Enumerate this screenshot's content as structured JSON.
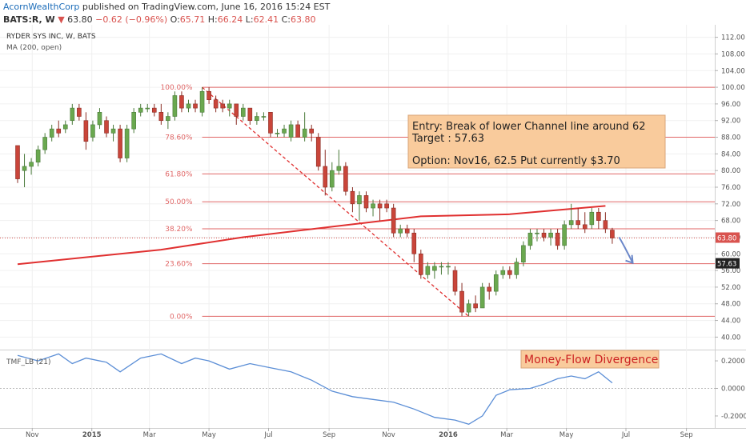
{
  "header": {
    "author": "AcornWealthCorp",
    "published": "published on TradingView.com, June 16, 2016 15:24 EST",
    "symbol": "BATS:R, W",
    "last": "63.80",
    "change": "−0.62 (−0.96%)",
    "o_label": "O:",
    "o_val": "65.71",
    "h_label": "H:",
    "h_val": "66.24",
    "l_label": "L:",
    "l_val": "62.41",
    "c_label": "C:",
    "c_val": "63.80"
  },
  "colors": {
    "up": "#6aa84f",
    "down": "#c9453a",
    "fib": "#e06666",
    "ma": "#e03030",
    "tmf": "#5b8ed6",
    "arrow": "#6b87c9",
    "note_bg": "#f9cb9c",
    "price_tag": "#d9534f",
    "grid": "#f0f0f0"
  },
  "chart_data": [
    {
      "type": "candlestick",
      "title": "RYDER SYS INC, W, BATS",
      "indicator_label": "MA (200, open)",
      "y_axis_side": "right",
      "ylim": [
        37,
        115
      ],
      "yticks": [
        "40.00",
        "44.00",
        "48.00",
        "52.00",
        "56.00",
        "60.00",
        "64.00",
        "68.00",
        "72.00",
        "76.00",
        "80.00",
        "84.00",
        "88.00",
        "92.00",
        "96.00",
        "100.00",
        "104.00",
        "108.00",
        "112.00"
      ],
      "x_axis": {
        "start": "2014-10-17",
        "end": "2016-09-30",
        "ticks": [
          {
            "label": "Nov",
            "date": "2014-11-01"
          },
          {
            "label": "2015",
            "date": "2015-01-01"
          },
          {
            "label": "Mar",
            "date": "2015-03-01"
          },
          {
            "label": "May",
            "date": "2015-05-01"
          },
          {
            "label": "Jul",
            "date": "2015-07-01"
          },
          {
            "label": "Sep",
            "date": "2015-09-01"
          },
          {
            "label": "Nov",
            "date": "2015-11-01"
          },
          {
            "label": "2016",
            "date": "2016-01-01"
          },
          {
            "label": "Mar",
            "date": "2016-03-01"
          },
          {
            "label": "May",
            "date": "2016-05-01"
          },
          {
            "label": "Jul",
            "date": "2016-07-01"
          },
          {
            "label": "Sep",
            "date": "2016-09-01"
          }
        ]
      },
      "fib_levels": [
        {
          "label": "100.00%",
          "price": 100.0
        },
        {
          "label": "78.60%",
          "price": 88.0
        },
        {
          "label": "61.80%",
          "price": 79.2
        },
        {
          "label": "50.00%",
          "price": 72.5
        },
        {
          "label": "38.20%",
          "price": 66.0
        },
        {
          "label": "23.60%",
          "price": 57.63
        },
        {
          "label": "0.00%",
          "price": 45.0
        }
      ],
      "ma_200": [
        {
          "date": "2014-10-17",
          "value": 57.5
        },
        {
          "date": "2015-03-13",
          "value": 61.0
        },
        {
          "date": "2015-06-05",
          "value": 64.0
        },
        {
          "date": "2015-09-04",
          "value": 66.5
        },
        {
          "date": "2015-12-04",
          "value": 69.0
        },
        {
          "date": "2016-03-04",
          "value": 69.5
        },
        {
          "date": "2016-06-10",
          "value": 71.5
        }
      ],
      "trend_line": [
        {
          "date": "2015-04-24",
          "value": 100.0
        },
        {
          "date": "2016-01-22",
          "value": 45.0
        }
      ],
      "projection_arrow": [
        {
          "date": "2016-06-24",
          "value": 64.0
        },
        {
          "date": "2016-07-08",
          "value": 57.8
        }
      ],
      "last_price_tag": "63.80",
      "target_tag": "57.63",
      "note": {
        "line1": "Entry: Break of lower Channel line around 62",
        "line2": "Target : 57.63",
        "line3": "Option: Nov16, 62.5 Put currently $3.70"
      },
      "candles": [
        {
          "d": "2014-10-17",
          "o": 86,
          "h": 86,
          "l": 77,
          "c": 78
        },
        {
          "d": "2014-10-24",
          "o": 80,
          "h": 84,
          "l": 76,
          "c": 81
        },
        {
          "d": "2014-10-31",
          "o": 81,
          "h": 83,
          "l": 79,
          "c": 82
        },
        {
          "d": "2014-11-07",
          "o": 82,
          "h": 86,
          "l": 81,
          "c": 85
        },
        {
          "d": "2014-11-14",
          "o": 85,
          "h": 89,
          "l": 84,
          "c": 88
        },
        {
          "d": "2014-11-21",
          "o": 88,
          "h": 91,
          "l": 87,
          "c": 90
        },
        {
          "d": "2014-11-28",
          "o": 90,
          "h": 92,
          "l": 88,
          "c": 89
        },
        {
          "d": "2014-12-05",
          "o": 90,
          "h": 92,
          "l": 89,
          "c": 91
        },
        {
          "d": "2014-12-12",
          "o": 92,
          "h": 96,
          "l": 91,
          "c": 95
        },
        {
          "d": "2014-12-19",
          "o": 95,
          "h": 96,
          "l": 92,
          "c": 93
        },
        {
          "d": "2014-12-26",
          "o": 92,
          "h": 94,
          "l": 85,
          "c": 87
        },
        {
          "d": "2015-01-02",
          "o": 88,
          "h": 92,
          "l": 87,
          "c": 91
        },
        {
          "d": "2015-01-09",
          "o": 91,
          "h": 95,
          "l": 90,
          "c": 94
        },
        {
          "d": "2015-01-16",
          "o": 92,
          "h": 93,
          "l": 88,
          "c": 89
        },
        {
          "d": "2015-01-23",
          "o": 89,
          "h": 91,
          "l": 87,
          "c": 90
        },
        {
          "d": "2015-01-30",
          "o": 90,
          "h": 91,
          "l": 82,
          "c": 83
        },
        {
          "d": "2015-02-06",
          "o": 83,
          "h": 91,
          "l": 82,
          "c": 90
        },
        {
          "d": "2015-02-13",
          "o": 90,
          "h": 95,
          "l": 89,
          "c": 94
        },
        {
          "d": "2015-02-20",
          "o": 94,
          "h": 96,
          "l": 93,
          "c": 95
        },
        {
          "d": "2015-02-27",
          "o": 95,
          "h": 96,
          "l": 94,
          "c": 95
        },
        {
          "d": "2015-03-06",
          "o": 95,
          "h": 96,
          "l": 93,
          "c": 94
        },
        {
          "d": "2015-03-13",
          "o": 94,
          "h": 96,
          "l": 91,
          "c": 92
        },
        {
          "d": "2015-03-20",
          "o": 92,
          "h": 94,
          "l": 90,
          "c": 93
        },
        {
          "d": "2015-03-27",
          "o": 93,
          "h": 99,
          "l": 92,
          "c": 98
        },
        {
          "d": "2015-04-03",
          "o": 98,
          "h": 99,
          "l": 94,
          "c": 95
        },
        {
          "d": "2015-04-10",
          "o": 95,
          "h": 97,
          "l": 94,
          "c": 96
        },
        {
          "d": "2015-04-17",
          "o": 96,
          "h": 97,
          "l": 94,
          "c": 95
        },
        {
          "d": "2015-04-24",
          "o": 94,
          "h": 100,
          "l": 93,
          "c": 99
        },
        {
          "d": "2015-05-01",
          "o": 99,
          "h": 100,
          "l": 96,
          "c": 97
        },
        {
          "d": "2015-05-08",
          "o": 97,
          "h": 98,
          "l": 94,
          "c": 95
        },
        {
          "d": "2015-05-15",
          "o": 96,
          "h": 97,
          "l": 94,
          "c": 95
        },
        {
          "d": "2015-05-22",
          "o": 95,
          "h": 97,
          "l": 93,
          "c": 96
        },
        {
          "d": "2015-05-29",
          "o": 96,
          "h": 96,
          "l": 91,
          "c": 93
        },
        {
          "d": "2015-06-05",
          "o": 93,
          "h": 96,
          "l": 92,
          "c": 95
        },
        {
          "d": "2015-06-12",
          "o": 95,
          "h": 95,
          "l": 91,
          "c": 92
        },
        {
          "d": "2015-06-19",
          "o": 92,
          "h": 94,
          "l": 91,
          "c": 93
        },
        {
          "d": "2015-06-26",
          "o": 93,
          "h": 94,
          "l": 92,
          "c": 93
        },
        {
          "d": "2015-07-03",
          "o": 94,
          "h": 94,
          "l": 88,
          "c": 89
        },
        {
          "d": "2015-07-10",
          "o": 89,
          "h": 90,
          "l": 88,
          "c": 89
        },
        {
          "d": "2015-07-17",
          "o": 89,
          "h": 91,
          "l": 88,
          "c": 90
        },
        {
          "d": "2015-07-24",
          "o": 88,
          "h": 92,
          "l": 87,
          "c": 91
        },
        {
          "d": "2015-07-31",
          "o": 91,
          "h": 92,
          "l": 88,
          "c": 88
        },
        {
          "d": "2015-08-07",
          "o": 88,
          "h": 94,
          "l": 87,
          "c": 90
        },
        {
          "d": "2015-08-14",
          "o": 90,
          "h": 91,
          "l": 87,
          "c": 89
        },
        {
          "d": "2015-08-21",
          "o": 88,
          "h": 89,
          "l": 80,
          "c": 81
        },
        {
          "d": "2015-08-28",
          "o": 81,
          "h": 85,
          "l": 74,
          "c": 76
        },
        {
          "d": "2015-09-04",
          "o": 76,
          "h": 82,
          "l": 75,
          "c": 80
        },
        {
          "d": "2015-09-11",
          "o": 80,
          "h": 85,
          "l": 79,
          "c": 81
        },
        {
          "d": "2015-09-18",
          "o": 81,
          "h": 82,
          "l": 74,
          "c": 75
        },
        {
          "d": "2015-09-25",
          "o": 75,
          "h": 76,
          "l": 70,
          "c": 72
        },
        {
          "d": "2015-10-02",
          "o": 72,
          "h": 75,
          "l": 68,
          "c": 74
        },
        {
          "d": "2015-10-09",
          "o": 74,
          "h": 75,
          "l": 70,
          "c": 71
        },
        {
          "d": "2015-10-16",
          "o": 71,
          "h": 73,
          "l": 69,
          "c": 72
        },
        {
          "d": "2015-10-23",
          "o": 72,
          "h": 73,
          "l": 68,
          "c": 71
        },
        {
          "d": "2015-10-30",
          "o": 72,
          "h": 73,
          "l": 70,
          "c": 71
        },
        {
          "d": "2015-11-06",
          "o": 71,
          "h": 72,
          "l": 64,
          "c": 65
        },
        {
          "d": "2015-11-13",
          "o": 65,
          "h": 67,
          "l": 64,
          "c": 66
        },
        {
          "d": "2015-11-20",
          "o": 66,
          "h": 67,
          "l": 64,
          "c": 65
        },
        {
          "d": "2015-11-27",
          "o": 65,
          "h": 66,
          "l": 58,
          "c": 60
        },
        {
          "d": "2015-12-04",
          "o": 60,
          "h": 61,
          "l": 54,
          "c": 55
        },
        {
          "d": "2015-12-11",
          "o": 55,
          "h": 58,
          "l": 54,
          "c": 57
        },
        {
          "d": "2015-12-18",
          "o": 56,
          "h": 58,
          "l": 54,
          "c": 57
        },
        {
          "d": "2015-12-25",
          "o": 57,
          "h": 58,
          "l": 55,
          "c": 57
        },
        {
          "d": "2016-01-01",
          "o": 57,
          "h": 58,
          "l": 55,
          "c": 57
        },
        {
          "d": "2016-01-08",
          "o": 56,
          "h": 57,
          "l": 50,
          "c": 51
        },
        {
          "d": "2016-01-15",
          "o": 51,
          "h": 53,
          "l": 45,
          "c": 46
        },
        {
          "d": "2016-01-22",
          "o": 46,
          "h": 49,
          "l": 45,
          "c": 48
        },
        {
          "d": "2016-01-29",
          "o": 48,
          "h": 50,
          "l": 46,
          "c": 47
        },
        {
          "d": "2016-02-05",
          "o": 47,
          "h": 53,
          "l": 47,
          "c": 52
        },
        {
          "d": "2016-02-12",
          "o": 52,
          "h": 53,
          "l": 49,
          "c": 51
        },
        {
          "d": "2016-02-19",
          "o": 51,
          "h": 56,
          "l": 50,
          "c": 55
        },
        {
          "d": "2016-02-26",
          "o": 55,
          "h": 57,
          "l": 54,
          "c": 56
        },
        {
          "d": "2016-03-04",
          "o": 56,
          "h": 57,
          "l": 54,
          "c": 55
        },
        {
          "d": "2016-03-11",
          "o": 55,
          "h": 59,
          "l": 54,
          "c": 58
        },
        {
          "d": "2016-03-18",
          "o": 58,
          "h": 63,
          "l": 57,
          "c": 62
        },
        {
          "d": "2016-03-25",
          "o": 62,
          "h": 66,
          "l": 61,
          "c": 65
        },
        {
          "d": "2016-04-01",
          "o": 65,
          "h": 66,
          "l": 63,
          "c": 65
        },
        {
          "d": "2016-04-08",
          "o": 65,
          "h": 66,
          "l": 63,
          "c": 64
        },
        {
          "d": "2016-04-15",
          "o": 64,
          "h": 66,
          "l": 62,
          "c": 65
        },
        {
          "d": "2016-04-22",
          "o": 65,
          "h": 66,
          "l": 61,
          "c": 62
        },
        {
          "d": "2016-04-29",
          "o": 62,
          "h": 68,
          "l": 61,
          "c": 67
        },
        {
          "d": "2016-05-06",
          "o": 67,
          "h": 72,
          "l": 66,
          "c": 68
        },
        {
          "d": "2016-05-13",
          "o": 68,
          "h": 71,
          "l": 66,
          "c": 67
        },
        {
          "d": "2016-05-20",
          "o": 67,
          "h": 70,
          "l": 65,
          "c": 66
        },
        {
          "d": "2016-05-27",
          "o": 67,
          "h": 71,
          "l": 66,
          "c": 70
        },
        {
          "d": "2016-06-03",
          "o": 70,
          "h": 71,
          "l": 66,
          "c": 68
        },
        {
          "d": "2016-06-10",
          "o": 68,
          "h": 70,
          "l": 65,
          "c": 66
        },
        {
          "d": "2016-06-17",
          "o": 65.71,
          "h": 66.24,
          "l": 62.41,
          "c": 63.8
        }
      ]
    },
    {
      "type": "line",
      "series_label": "TMF_LB (21)",
      "annotation": "Money-Flow Divergence",
      "ylim": [
        -0.27,
        0.27
      ],
      "yticks": [
        "0.2000",
        "0.0000",
        "-0.2000"
      ],
      "points": [
        {
          "date": "2014-10-17",
          "value": 0.24
        },
        {
          "date": "2014-11-07",
          "value": 0.2
        },
        {
          "date": "2014-11-28",
          "value": 0.25
        },
        {
          "date": "2014-12-12",
          "value": 0.18
        },
        {
          "date": "2014-12-26",
          "value": 0.22
        },
        {
          "date": "2015-01-16",
          "value": 0.19
        },
        {
          "date": "2015-01-30",
          "value": 0.12
        },
        {
          "date": "2015-02-20",
          "value": 0.22
        },
        {
          "date": "2015-03-13",
          "value": 0.25
        },
        {
          "date": "2015-04-03",
          "value": 0.18
        },
        {
          "date": "2015-04-17",
          "value": 0.22
        },
        {
          "date": "2015-05-01",
          "value": 0.2
        },
        {
          "date": "2015-05-22",
          "value": 0.14
        },
        {
          "date": "2015-06-12",
          "value": 0.18
        },
        {
          "date": "2015-07-03",
          "value": 0.15
        },
        {
          "date": "2015-07-24",
          "value": 0.12
        },
        {
          "date": "2015-08-14",
          "value": 0.06
        },
        {
          "date": "2015-09-04",
          "value": -0.02
        },
        {
          "date": "2015-09-25",
          "value": -0.06
        },
        {
          "date": "2015-10-16",
          "value": -0.08
        },
        {
          "date": "2015-11-06",
          "value": -0.1
        },
        {
          "date": "2015-11-27",
          "value": -0.15
        },
        {
          "date": "2015-12-18",
          "value": -0.21
        },
        {
          "date": "2016-01-08",
          "value": -0.23
        },
        {
          "date": "2016-01-22",
          "value": -0.26
        },
        {
          "date": "2016-02-05",
          "value": -0.2
        },
        {
          "date": "2016-02-19",
          "value": -0.05
        },
        {
          "date": "2016-03-04",
          "value": -0.01
        },
        {
          "date": "2016-03-25",
          "value": 0.0
        },
        {
          "date": "2016-04-08",
          "value": 0.03
        },
        {
          "date": "2016-04-22",
          "value": 0.07
        },
        {
          "date": "2016-05-06",
          "value": 0.09
        },
        {
          "date": "2016-05-20",
          "value": 0.07
        },
        {
          "date": "2016-06-03",
          "value": 0.12
        },
        {
          "date": "2016-06-10",
          "value": 0.08
        },
        {
          "date": "2016-06-17",
          "value": 0.04
        }
      ]
    }
  ]
}
